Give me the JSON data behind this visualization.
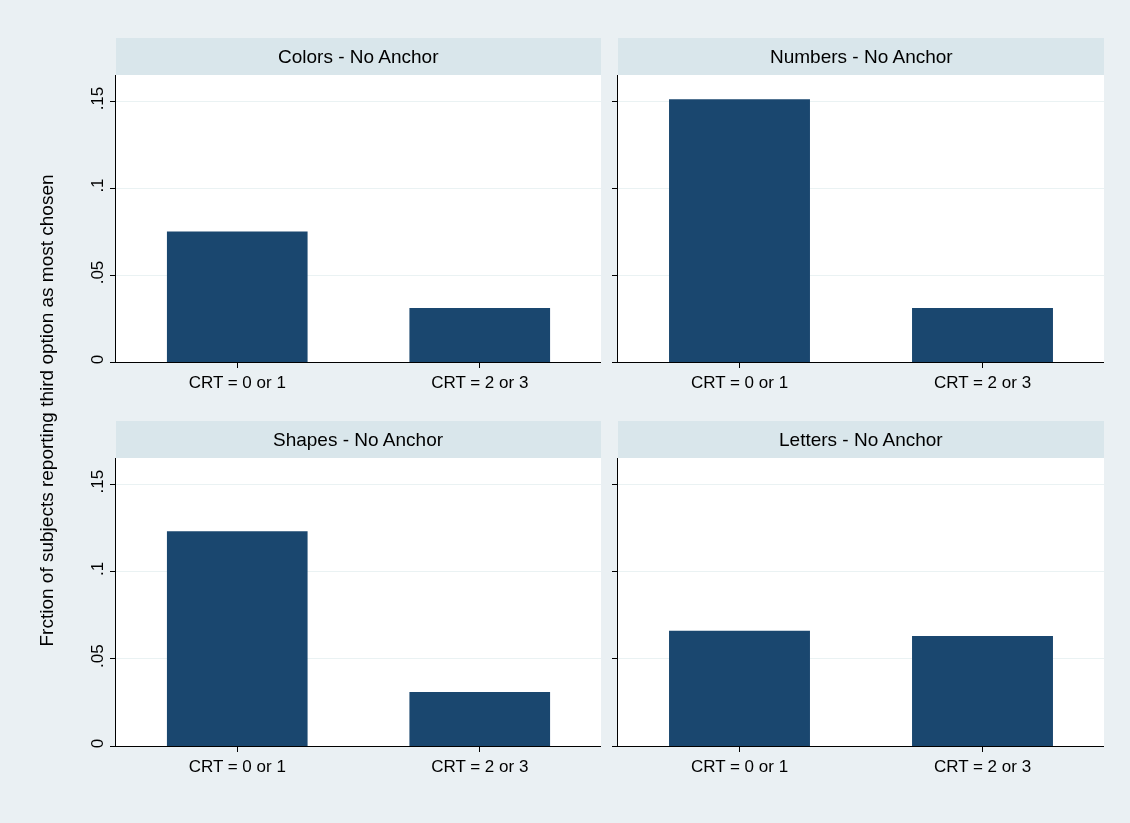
{
  "chart_data": [
    {
      "type": "bar",
      "title": "Colors - No Anchor",
      "ylabel": "Frction of subjects reporting third option as most chosen",
      "categories": [
        "CRT = 0 or 1",
        "CRT = 2 or 3"
      ],
      "values": [
        0.075,
        0.031
      ],
      "color": "#1a476f",
      "ylim": [
        0,
        0.165
      ],
      "yticks": [
        {
          "value": 0,
          "label": "0"
        },
        {
          "value": 0.05,
          "label": ".05"
        },
        {
          "value": 0.1,
          "label": ".1"
        },
        {
          "value": 0.15,
          "label": ".15"
        }
      ],
      "grid": "y"
    },
    {
      "type": "bar",
      "title": "Numbers - No Anchor",
      "categories": [
        "CRT = 0 or 1",
        "CRT = 2 or 3"
      ],
      "values": [
        0.151,
        0.031
      ],
      "color": "#1a476f",
      "ylim": [
        0,
        0.165
      ],
      "yticks": [
        {
          "value": 0,
          "label": null
        },
        {
          "value": 0.05,
          "label": null
        },
        {
          "value": 0.1,
          "label": null
        },
        {
          "value": 0.15,
          "label": null
        }
      ],
      "grid": "y",
      "tick_labels": "x"
    },
    {
      "type": "bar",
      "title": "Shapes - No Anchor",
      "categories": [
        "CRT = 0 or 1",
        "CRT = 2 or 3"
      ],
      "values": [
        0.123,
        0.031
      ],
      "color": "#1a476f",
      "ylim": [
        0,
        0.165
      ],
      "yticks": [
        {
          "value": 0,
          "label": "0"
        },
        {
          "value": 0.05,
          "label": ".05"
        },
        {
          "value": 0.1,
          "label": ".1"
        },
        {
          "value": 0.15,
          "label": ".15"
        }
      ],
      "grid": "y"
    },
    {
      "type": "bar",
      "title": "Letters - No Anchor",
      "categories": [
        "CRT = 0 or 1",
        "CRT = 2 or 3"
      ],
      "values": [
        0.066,
        0.063
      ],
      "color": "#1a476f",
      "ylim": [
        0,
        0.165
      ],
      "yticks": [
        {
          "value": 0,
          "label": null
        },
        {
          "value": 0.05,
          "label": null
        },
        {
          "value": 0.1,
          "label": null
        },
        {
          "value": 0.15,
          "label": null
        }
      ],
      "grid": "y",
      "tick_labels": "x"
    }
  ]
}
